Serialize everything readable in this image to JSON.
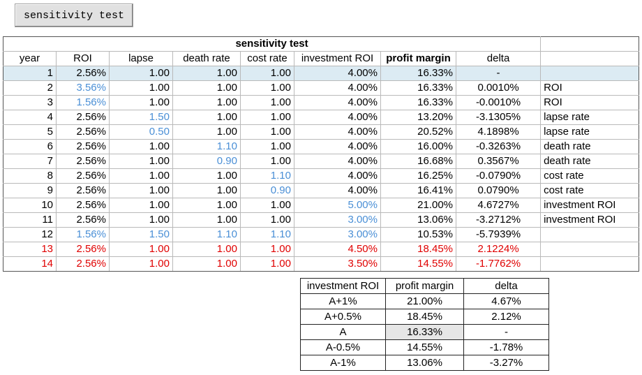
{
  "button": {
    "label": "sensitivity test"
  },
  "main_table": {
    "title": "sensitivity test",
    "headers": [
      "year",
      "ROI",
      "lapse",
      "death rate",
      "cost rate",
      "investment ROI",
      "profit margin",
      "delta",
      ""
    ],
    "rows": [
      {
        "year": "1",
        "roi": "2.56%",
        "lapse": "1.00",
        "death": "1.00",
        "cost": "1.00",
        "inv": "4.00%",
        "pm": "16.33%",
        "delta": "-",
        "label": ""
      },
      {
        "year": "2",
        "roi": "3.56%",
        "lapse": "1.00",
        "death": "1.00",
        "cost": "1.00",
        "inv": "4.00%",
        "pm": "16.33%",
        "delta": "0.0010%",
        "label": "ROI"
      },
      {
        "year": "3",
        "roi": "1.56%",
        "lapse": "1.00",
        "death": "1.00",
        "cost": "1.00",
        "inv": "4.00%",
        "pm": "16.33%",
        "delta": "-0.0010%",
        "label": "ROI"
      },
      {
        "year": "4",
        "roi": "2.56%",
        "lapse": "1.50",
        "death": "1.00",
        "cost": "1.00",
        "inv": "4.00%",
        "pm": "13.20%",
        "delta": "-3.1305%",
        "label": "lapse rate"
      },
      {
        "year": "5",
        "roi": "2.56%",
        "lapse": "0.50",
        "death": "1.00",
        "cost": "1.00",
        "inv": "4.00%",
        "pm": "20.52%",
        "delta": "4.1898%",
        "label": "lapse rate"
      },
      {
        "year": "6",
        "roi": "2.56%",
        "lapse": "1.00",
        "death": "1.10",
        "cost": "1.00",
        "inv": "4.00%",
        "pm": "16.00%",
        "delta": "-0.3263%",
        "label": "death rate"
      },
      {
        "year": "7",
        "roi": "2.56%",
        "lapse": "1.00",
        "death": "0.90",
        "cost": "1.00",
        "inv": "4.00%",
        "pm": "16.68%",
        "delta": "0.3567%",
        "label": "death rate"
      },
      {
        "year": "8",
        "roi": "2.56%",
        "lapse": "1.00",
        "death": "1.00",
        "cost": "1.10",
        "inv": "4.00%",
        "pm": "16.25%",
        "delta": "-0.0790%",
        "label": "cost rate"
      },
      {
        "year": "9",
        "roi": "2.56%",
        "lapse": "1.00",
        "death": "1.00",
        "cost": "0.90",
        "inv": "4.00%",
        "pm": "16.41%",
        "delta": "0.0790%",
        "label": "cost rate"
      },
      {
        "year": "10",
        "roi": "2.56%",
        "lapse": "1.00",
        "death": "1.00",
        "cost": "1.00",
        "inv": "5.00%",
        "pm": "21.00%",
        "delta": "4.6727%",
        "label": "investment ROI"
      },
      {
        "year": "11",
        "roi": "2.56%",
        "lapse": "1.00",
        "death": "1.00",
        "cost": "1.00",
        "inv": "3.00%",
        "pm": "13.06%",
        "delta": "-3.2712%",
        "label": "investment ROI"
      },
      {
        "year": "12",
        "roi": "1.56%",
        "lapse": "1.50",
        "death": "1.10",
        "cost": "1.10",
        "inv": "3.00%",
        "pm": "10.53%",
        "delta": "-5.7939%",
        "label": ""
      },
      {
        "year": "13",
        "roi": "2.56%",
        "lapse": "1.00",
        "death": "1.00",
        "cost": "1.00",
        "inv": "4.50%",
        "pm": "18.45%",
        "delta": "2.1224%",
        "label": ""
      },
      {
        "year": "14",
        "roi": "2.56%",
        "lapse": "1.00",
        "death": "1.00",
        "cost": "1.00",
        "inv": "3.50%",
        "pm": "14.55%",
        "delta": "-1.7762%",
        "label": ""
      }
    ]
  },
  "summary_table": {
    "headers": [
      "investment ROI",
      "profit margin",
      "delta"
    ],
    "rows": [
      [
        "A+1%",
        "21.00%",
        "4.67%"
      ],
      [
        "A+0.5%",
        "18.45%",
        "2.12%"
      ],
      [
        "A",
        "16.33%",
        "-"
      ],
      [
        "A-0.5%",
        "14.55%",
        "-1.78%"
      ],
      [
        "A-1%",
        "13.06%",
        "-3.27%"
      ]
    ]
  },
  "colors": {
    "highlight_blue": "#4a8fd6",
    "highlight_red": "#e00000",
    "base_row_bg": "#dcebf3"
  }
}
